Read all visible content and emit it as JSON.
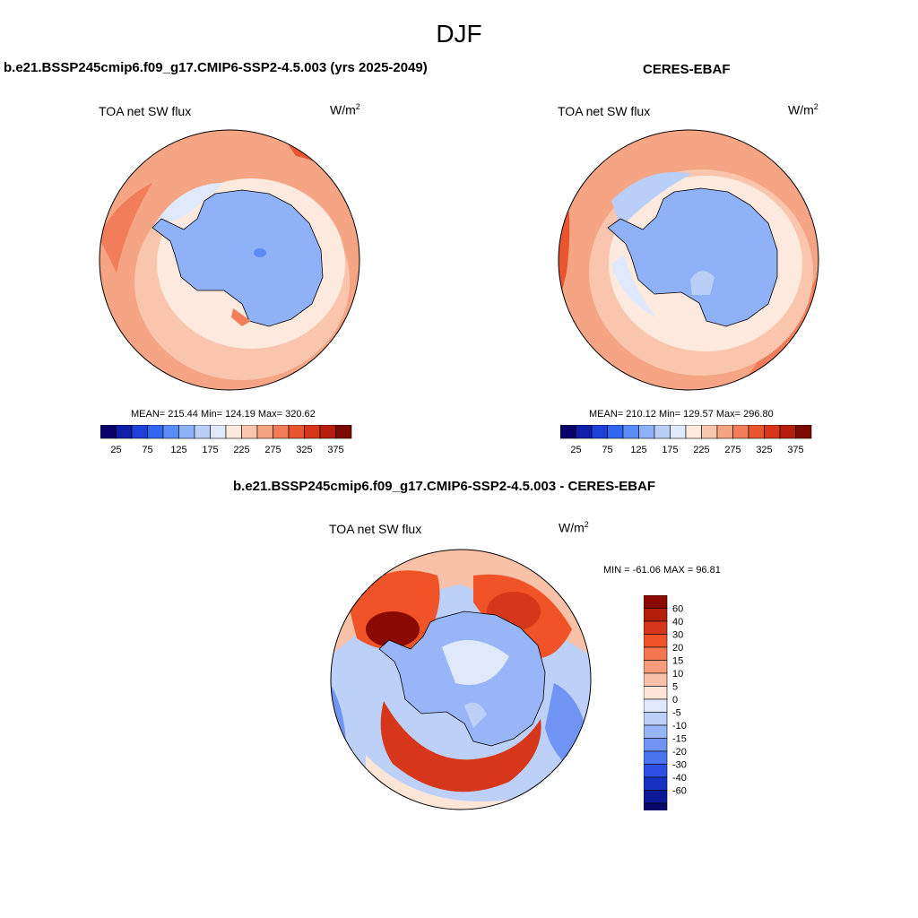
{
  "figure": {
    "title": "DJF"
  },
  "panels": [
    {
      "title": "b.e21.BSSP245cmip6.f09_g17.CMIP6-SSP2-4.5.003 (yrs 2025-2049)",
      "variable": "TOA net SW flux",
      "units_base": "W/m",
      "units_exp": "2",
      "stats": "MEAN= 215.44  Min= 124.19  Max= 320.62"
    },
    {
      "title": "CERES-EBAF",
      "variable": "TOA net SW flux",
      "units_base": "W/m",
      "units_exp": "2",
      "stats": "MEAN= 210.12  Min= 129.57  Max= 296.80"
    },
    {
      "title": "b.e21.BSSP245cmip6.f09_g17.CMIP6-SSP2-4.5.003 - CERES-EBAF",
      "variable": "TOA net SW flux",
      "units_base": "W/m",
      "units_exp": "2",
      "stats": "MIN = -61.06 MAX =  96.81"
    }
  ],
  "colorbars": {
    "absolute": {
      "colors": [
        "#08006b",
        "#0f1fa8",
        "#1e3fd8",
        "#3366f0",
        "#5b8bf6",
        "#8fb1f7",
        "#b9cff8",
        "#dfe9fb",
        "#fde9dd",
        "#f9c6ad",
        "#f5a484",
        "#f17d5a",
        "#e8552f",
        "#d6361a",
        "#b71d0c",
        "#7d0a02"
      ],
      "labels": [
        "25",
        "75",
        "125",
        "175",
        "225",
        "275",
        "325",
        "375"
      ]
    },
    "difference": {
      "colors_top_to_bottom": [
        "#8a0a02",
        "#b41f0a",
        "#d6361a",
        "#ef5327",
        "#f4774f",
        "#f69c7c",
        "#f9c2a8",
        "#fde6d8",
        "#dfe9fb",
        "#bcd0f8",
        "#97b5f7",
        "#6f94f4",
        "#4a73f0",
        "#2d4fe2",
        "#1731c2",
        "#0c1996",
        "#07086a"
      ],
      "labels": [
        "60",
        "40",
        "30",
        "20",
        "15",
        "10",
        "5",
        "0",
        "-5",
        "-10",
        "-15",
        "-20",
        "-30",
        "-40",
        "-60"
      ]
    }
  }
}
